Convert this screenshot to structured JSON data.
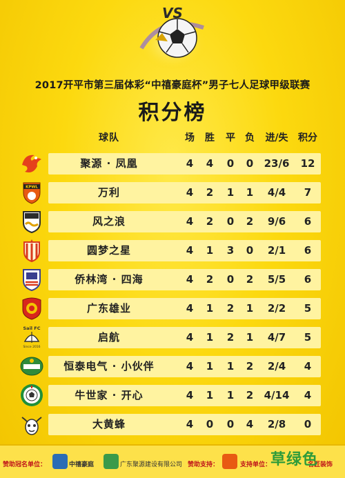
{
  "title": "2017开平市第三届体彩“中禧豪庭杯”男子七人足球甲级联赛",
  "subtitle": "积分榜",
  "hero": {
    "vs_label": "VS"
  },
  "headers": {
    "team": "球队",
    "played": "场",
    "won": "胜",
    "drawn": "平",
    "lost": "负",
    "goals": "进/失",
    "points": "积分"
  },
  "teams": [
    {
      "name": "聚源 · 凤凰",
      "played": "4",
      "won": "4",
      "drawn": "0",
      "lost": "0",
      "goals": "23/6",
      "points": "12",
      "logo_icon": "phoenix-logo-icon",
      "color": "#e5401c"
    },
    {
      "name": "万利",
      "played": "4",
      "won": "2",
      "drawn": "1",
      "lost": "1",
      "goals": "4/4",
      "points": "7",
      "logo_icon": "kpwl-shield-icon",
      "logo_text": "KPWL",
      "color": "#e85a12"
    },
    {
      "name": "风之浪",
      "played": "4",
      "won": "2",
      "drawn": "0",
      "lost": "2",
      "goals": "9/6",
      "points": "6",
      "logo_icon": "wave-shield-icon",
      "color": "#2b2b2b"
    },
    {
      "name": "圆梦之星",
      "played": "4",
      "won": "1",
      "drawn": "3",
      "lost": "0",
      "goals": "2/1",
      "points": "6",
      "logo_icon": "star-shield-icon",
      "color": "#d93a1c"
    },
    {
      "name": "侨林湾 · 四海",
      "played": "4",
      "won": "2",
      "drawn": "0",
      "lost": "2",
      "goals": "5/5",
      "points": "6",
      "logo_icon": "castle-shield-icon",
      "color": "#3a3f8f"
    },
    {
      "name": "广东雄业",
      "played": "4",
      "won": "1",
      "drawn": "2",
      "lost": "1",
      "goals": "2/2",
      "points": "5",
      "logo_icon": "red-shield-icon",
      "color": "#d8261c"
    },
    {
      "name": "启航",
      "played": "4",
      "won": "1",
      "drawn": "2",
      "lost": "1",
      "goals": "4/7",
      "points": "5",
      "logo_icon": "sail-logo-icon",
      "logo_text": "Sail FC",
      "logo_sub": "Since 2016",
      "color": "#333333"
    },
    {
      "name": "恒泰电气 · 小伙伴",
      "played": "4",
      "won": "1",
      "drawn": "1",
      "lost": "2",
      "goals": "2/4",
      "points": "4",
      "logo_icon": "green-badge-icon",
      "color": "#2f8b3a"
    },
    {
      "name": "牛世家 · 开心",
      "played": "4",
      "won": "1",
      "drawn": "1",
      "lost": "2",
      "goals": "4/14",
      "points": "4",
      "logo_icon": "ball-badge-icon",
      "color": "#1f8f3a"
    },
    {
      "name": "大黄蜂",
      "played": "4",
      "won": "0",
      "drawn": "0",
      "lost": "4",
      "goals": "2/8",
      "points": "0",
      "logo_icon": "bee-logo-icon",
      "color": "#333333"
    }
  ],
  "footer": {
    "sponsor_label": "赞助冠名单位：",
    "sponsor_name": "中禧豪庭",
    "partner_name": "广东聚源建设有限公司",
    "support_label": "赞助支持：",
    "support2_label": "支持单位：",
    "brand_right": "名匠装饰",
    "watermark": "草绿色"
  }
}
